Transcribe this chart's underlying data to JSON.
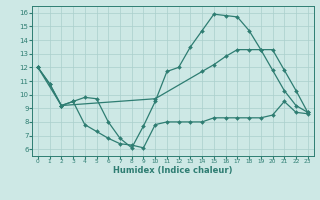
{
  "xlabel": "Humidex (Indice chaleur)",
  "bg_color": "#cde8e5",
  "line_color": "#2e7d72",
  "grid_color": "#aacfcc",
  "xlim": [
    -0.5,
    23.5
  ],
  "ylim": [
    5.5,
    16.5
  ],
  "yticks": [
    6,
    7,
    8,
    9,
    10,
    11,
    12,
    13,
    14,
    15,
    16
  ],
  "xticks": [
    0,
    1,
    2,
    3,
    4,
    5,
    6,
    7,
    8,
    9,
    10,
    11,
    12,
    13,
    14,
    15,
    16,
    17,
    18,
    19,
    20,
    21,
    22,
    23
  ],
  "series": [
    {
      "x": [
        0,
        1,
        2,
        3,
        4,
        5,
        6,
        7,
        8,
        9,
        10,
        11,
        12,
        13,
        14,
        15,
        16,
        17,
        18,
        19,
        20,
        21,
        22,
        23
      ],
      "y": [
        12.0,
        10.8,
        9.2,
        9.5,
        7.8,
        7.3,
        6.8,
        6.4,
        6.3,
        6.1,
        7.8,
        8.0,
        8.0,
        8.0,
        8.0,
        8.3,
        8.3,
        8.3,
        8.3,
        8.3,
        8.5,
        9.5,
        8.7,
        8.6
      ]
    },
    {
      "x": [
        0,
        1,
        2,
        3,
        4,
        5,
        6,
        7,
        8,
        9,
        10,
        11,
        12,
        13,
        14,
        15,
        16,
        17,
        18,
        19,
        20,
        21,
        22,
        23
      ],
      "y": [
        12.0,
        10.8,
        9.2,
        9.5,
        9.8,
        9.7,
        8.0,
        6.8,
        6.1,
        7.7,
        9.5,
        11.7,
        12.0,
        13.5,
        14.7,
        15.9,
        15.8,
        15.7,
        14.7,
        13.3,
        11.8,
        10.3,
        9.2,
        8.7
      ]
    },
    {
      "x": [
        0,
        2,
        10,
        14,
        15,
        16,
        17,
        18,
        19,
        20,
        21,
        22,
        23
      ],
      "y": [
        12.0,
        9.2,
        9.7,
        11.7,
        12.2,
        12.8,
        13.3,
        13.3,
        13.3,
        13.3,
        11.8,
        10.3,
        8.7
      ]
    }
  ]
}
